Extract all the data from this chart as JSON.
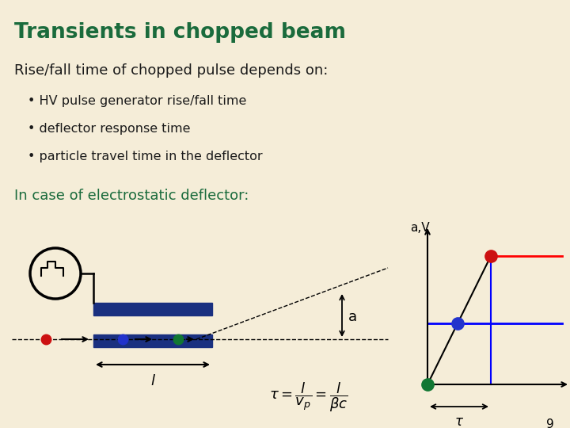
{
  "title": "Transients in chopped beam",
  "title_color": "#1a6b3c",
  "bg_color": "#f5edd8",
  "body_text_color": "#1a1a1a",
  "subtitle": "Rise/fall time of chopped pulse depends on:",
  "bullets": [
    "HV pulse generator rise/fall time",
    "deflector response time",
    "particle travel time in the deflector"
  ],
  "green_text": "In case of electrostatic deflector:",
  "green_text_color": "#1a6b3c",
  "blue_plate_color": "#1a3080",
  "dot_red": "#cc1111",
  "dot_blue": "#2233cc",
  "dot_green": "#117733",
  "page_number": "9"
}
